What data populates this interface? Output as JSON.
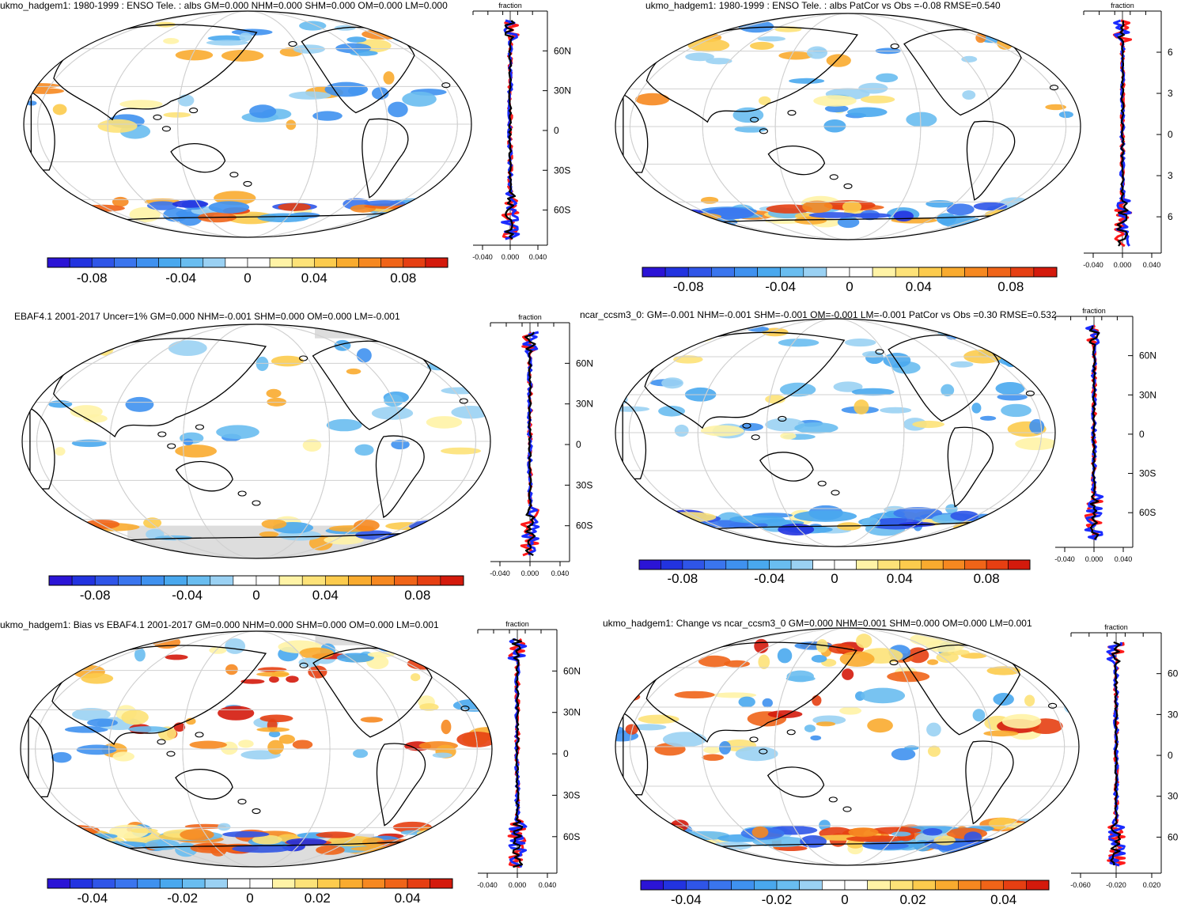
{
  "panels": [
    {
      "title": "ukmo_hadgem1: 1980-1999 : ENSO Tele. : albs GM=0.000 NHM=0.000 SHM=0.000 OM=0.000 LM=0.000",
      "colorbar_ticks": [
        "-0.08",
        "-0.04",
        "0",
        "0.04",
        "0.08"
      ],
      "zonal_label": "fraction",
      "zonal_xticks": [
        "-0.040",
        "0.000",
        "0.040"
      ],
      "zonal_yticks": [
        "60N",
        "30N",
        "0",
        "30S",
        "60S"
      ]
    },
    {
      "title": "ukmo_hadgem1: 1980-1999 : ENSO Tele. : albs PatCor vs Obs =-0.08 RMSE=0.540",
      "colorbar_ticks": [
        "-0.08",
        "-0.04",
        "0",
        "0.04",
        "0.08"
      ],
      "zonal_label": "fraction",
      "zonal_xticks": [
        "-0.040",
        "0.000",
        "0.040"
      ],
      "zonal_yticks": [
        "6",
        "3",
        "0",
        "3",
        "6"
      ]
    },
    {
      "title": "EBAF4.1 2001-2017 Uncer=1% GM=0.000 NHM=-0.001 SHM=0.000 OM=0.000 LM=-0.001",
      "colorbar_ticks": [
        "-0.08",
        "-0.04",
        "0",
        "0.04",
        "0.08"
      ],
      "zonal_label": "fraction",
      "zonal_xticks": [
        "-0.040",
        "0.000",
        "0.040"
      ],
      "zonal_yticks": [
        "60N",
        "30N",
        "0",
        "30S",
        "60S"
      ]
    },
    {
      "title": "ncar_ccsm3_0: GM=-0.001 NHM=-0.001 SHM=-0.001 OM=-0.001 LM=-0.001 PatCor vs Obs =0.30 RMSE=0.532",
      "colorbar_ticks": [
        "-0.08",
        "-0.04",
        "0",
        "0.04",
        "0.08"
      ],
      "zonal_label": "fraction",
      "zonal_xticks": [
        "-0.040",
        "0.000",
        "0.040"
      ],
      "zonal_yticks": [
        "60N",
        "30N",
        "0",
        "30S",
        "60S"
      ]
    },
    {
      "title": "ukmo_hadgem1: Bias vs EBAF4.1 2001-2017 GM=0.000 NHM=0.000 SHM=0.000 OM=0.000 LM=0.001",
      "colorbar_ticks": [
        "-0.04",
        "-0.02",
        "0",
        "0.02",
        "0.04"
      ],
      "zonal_label": "fraction",
      "zonal_xticks": [
        "-0.040",
        "0.000",
        "0.040"
      ],
      "zonal_yticks": [
        "60N",
        "30N",
        "0",
        "30S",
        "60S"
      ]
    },
    {
      "title": "ukmo_hadgem1: Change vs ncar_ccsm3_0 GM=0.000 NHM=0.001 SHM=0.000 OM=0.000 LM=0.001",
      "colorbar_ticks": [
        "-0.04",
        "-0.02",
        "0",
        "0.02",
        "0.04"
      ],
      "zonal_label": "fraction",
      "zonal_xticks": [
        "-0.060",
        "-0.020",
        "0.020"
      ],
      "zonal_yticks": [
        "60",
        "30",
        "0",
        "30",
        "60"
      ]
    }
  ],
  "colors": {
    "palette": [
      "#2b14d6",
      "#2233e0",
      "#2f55e8",
      "#3a75ee",
      "#3f91ef",
      "#49a8ee",
      "#69bdf0",
      "#9ad1f3",
      "#ffffff",
      "#ffffff",
      "#fff3a6",
      "#fde278",
      "#fccb4d",
      "#f9ab2f",
      "#f68820",
      "#f06418",
      "#e63f12",
      "#d41a0c"
    ],
    "line_model": "#000000",
    "line_red": "#ff1a1a",
    "line_blue": "#1a2bff",
    "grid": "#d0d0d0",
    "missing": "#dddddd"
  }
}
